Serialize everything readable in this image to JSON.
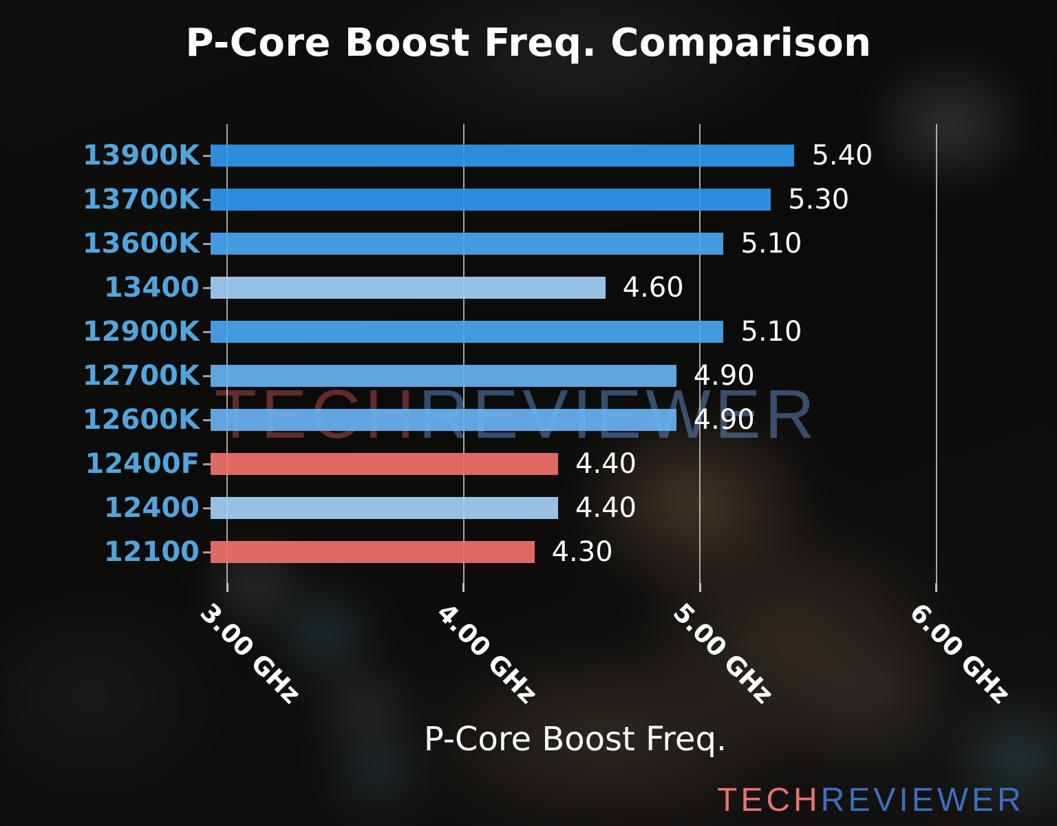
{
  "chart_data": {
    "type": "bar",
    "orientation": "horizontal",
    "title": "P-Core Boost Freq. Comparison",
    "xlabel": "P-Core Boost Freq.",
    "ylabel": "",
    "categories": [
      "13900K",
      "13700K",
      "13600K",
      "13400",
      "12900K",
      "12700K",
      "12600K",
      "12400F",
      "12400",
      "12100"
    ],
    "values": [
      5.4,
      5.3,
      5.1,
      4.6,
      5.1,
      4.9,
      4.9,
      4.4,
      4.4,
      4.3
    ],
    "value_labels": [
      "5.40",
      "5.30",
      "5.10",
      "4.60",
      "5.10",
      "4.90",
      "4.90",
      "4.40",
      "4.40",
      "4.30"
    ],
    "unit": "GHz",
    "bar_colors": [
      "#2F97EF",
      "#2F97EF",
      "#4AA5F0",
      "#A3D0F5",
      "#4AA5F0",
      "#67B2F1",
      "#67B2F1",
      "#F0716C",
      "#A3D0F5",
      "#F0716C"
    ],
    "x_ticks": [
      {
        "value": 3,
        "label": "3.00 GHz"
      },
      {
        "value": 4,
        "label": "4.00 GHz"
      },
      {
        "value": 5,
        "label": "5.00 GHz"
      },
      {
        "value": 6,
        "label": "6.00 GHz"
      }
    ],
    "xlim": [
      2.93,
      6.4
    ],
    "grid": "vertical",
    "legend": false,
    "category_label_color": "#52A5DB",
    "value_label_color": "#FFFFFF",
    "grid_color": "#D4D4D4"
  },
  "branding": {
    "watermark_tech": "TECH",
    "watermark_reviewer": "REVIEWER",
    "logo_tech": "TECH",
    "logo_reviewer": "REVIEWER",
    "logo_tech_color": "#E8746E",
    "logo_reviewer_color": "#3A6FC0"
  }
}
